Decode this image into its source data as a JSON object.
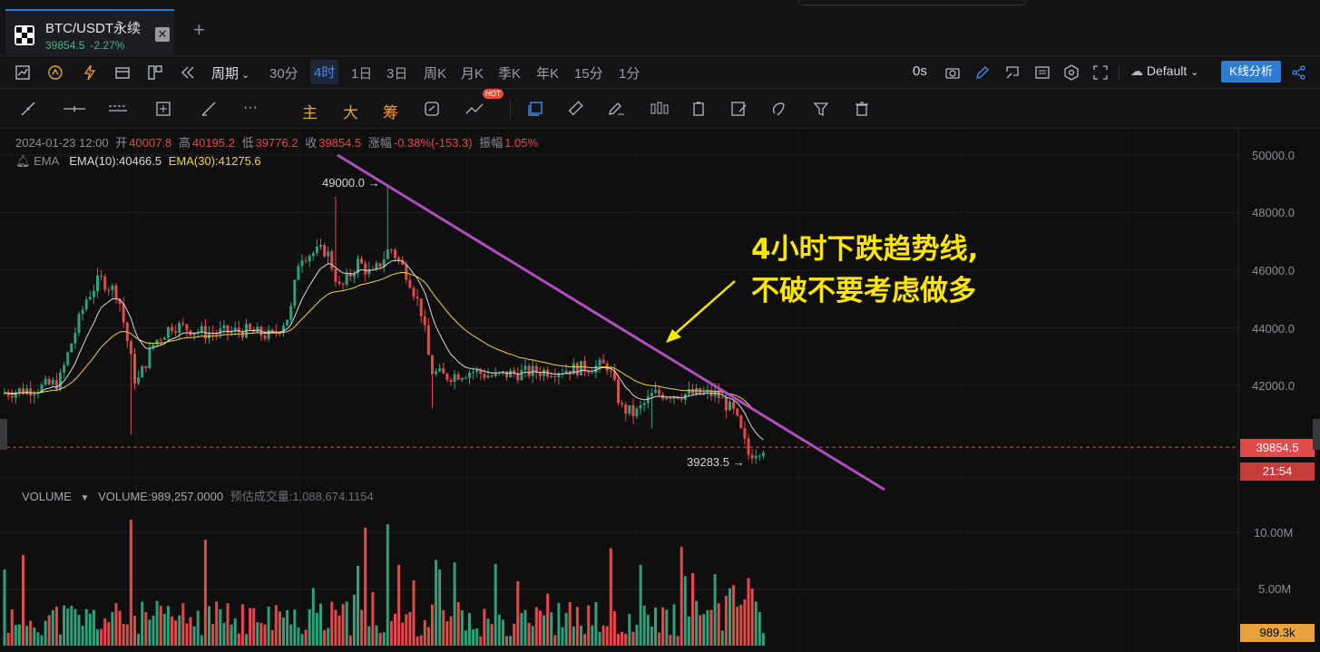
{
  "tab": {
    "title": "BTC/USDT永续",
    "price": "39854.5",
    "change": "-2.27%"
  },
  "toolbar": {
    "period_label": "周期",
    "periods": [
      "30分",
      "4时",
      "1日",
      "3日",
      "周K",
      "月K",
      "季K",
      "年K",
      "15分",
      "1分"
    ],
    "active_period": "4时",
    "countdown": "0s",
    "template": "Default",
    "kline_button": "K线分析"
  },
  "drawing_tools": {
    "indicator_buttons": [
      "主",
      "大",
      "筹"
    ],
    "hot_badge": "HOT"
  },
  "ohlc": {
    "date": "2024-01-23 12:00",
    "open_label": "开",
    "open": "40007.8",
    "high_label": "高",
    "high": "40195.2",
    "low_label": "低",
    "low": "39776.2",
    "close_label": "收",
    "close": "39854.5",
    "change_label": "涨幅",
    "change": "-0.38%(-153.3)",
    "amp_label": "振幅",
    "amp": "1.05%"
  },
  "ema": {
    "label": "EMA",
    "ema10": "EMA(10):40466.5",
    "ema30": "EMA(30):41275.6"
  },
  "volume": {
    "label": "VOLUME",
    "value": "VOLUME:989,257.0000",
    "estimate": "预估成交量:1,088,674.1154"
  },
  "price_axis": [
    "50000.0",
    "48000.0",
    "46000.0",
    "44000.0",
    "42000.0"
  ],
  "volume_axis": [
    "10.00M",
    "5.00M"
  ],
  "tags": {
    "current_price": "39854.5",
    "timer": "21:54",
    "current_volume": "989.3k"
  },
  "markers": {
    "high": "49000.0 →",
    "low": "39283.5 →"
  },
  "annotation": {
    "line1": "4小时下跌趋势线,",
    "line2": "不破不要考虑做多"
  },
  "colors": {
    "up": "#2fa07a",
    "down": "#e04a4a",
    "ema10": "#d9d9d9",
    "ema30": "#f2d43a",
    "trendline": "#b04ec0",
    "accent": "#2e7bd6"
  },
  "chart_data": {
    "type": "candlestick",
    "y_range": [
      38500,
      50500
    ],
    "trend_line": {
      "from": [
        0.37,
        49400
      ],
      "to": [
        1.0,
        39000
      ]
    },
    "current_price": 39854.5,
    "high_marker": 49000.0,
    "low_marker": 39283.5
  }
}
